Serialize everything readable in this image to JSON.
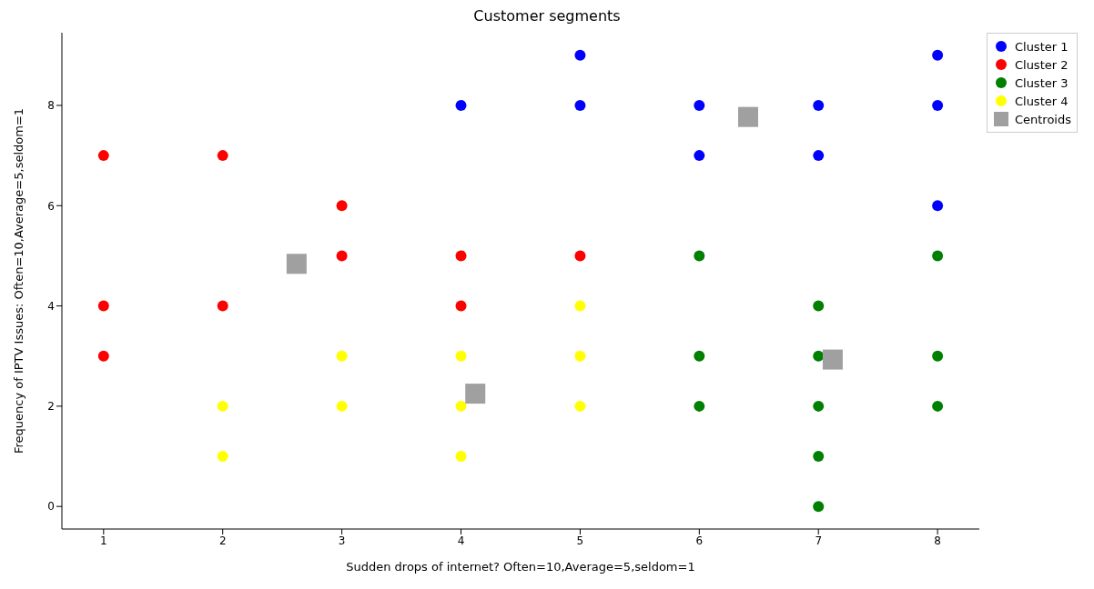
{
  "chart_data": {
    "type": "scatter",
    "title": "Customer segments",
    "xlabel": "Sudden drops of internet? Often=10,Average=5,seldom=1",
    "ylabel": "Frequency of IPTV Issues: Often=10,Average=5,seldom=1",
    "xlim": [
      0.65,
      8.35
    ],
    "xticks": [
      1,
      2,
      3,
      4,
      5,
      6,
      7,
      8
    ],
    "ylim": [
      -0.45,
      9.45
    ],
    "yticks": [
      0,
      2,
      4,
      6,
      8
    ],
    "grid": false,
    "legend": "top right",
    "marker": "circle",
    "series": [
      {
        "name": "Cluster 1",
        "color": "#0000ff",
        "x": [
          4,
          5,
          5,
          6,
          6,
          7,
          7,
          8,
          8,
          8
        ],
        "values": [
          8,
          9,
          8,
          8,
          7,
          8,
          7,
          9,
          8,
          6
        ]
      },
      {
        "name": "Cluster 2",
        "color": "#ff0000",
        "x": [
          1,
          1,
          1,
          2,
          2,
          3,
          3,
          4,
          4,
          5
        ],
        "values": [
          7,
          4,
          3,
          7,
          4,
          6,
          5,
          5,
          4,
          5
        ]
      },
      {
        "name": "Cluster 3",
        "color": "#008000",
        "x": [
          6,
          6,
          6,
          7,
          7,
          7,
          7,
          7,
          8,
          8,
          8
        ],
        "values": [
          5,
          3,
          2,
          4,
          3,
          2,
          1,
          0,
          5,
          3,
          2
        ]
      },
      {
        "name": "Cluster 4",
        "color": "#ffff00",
        "x": [
          2,
          2,
          3,
          3,
          4,
          4,
          4,
          5,
          5,
          5
        ],
        "values": [
          2,
          1,
          3,
          2,
          3,
          2,
          1,
          4,
          3,
          2
        ]
      },
      {
        "name": "Centroids",
        "color": "#a0a0a0",
        "marker": "square",
        "x": [
          2.62,
          4.12,
          6.41,
          7.12
        ],
        "values": [
          4.84,
          2.25,
          7.77,
          2.93
        ]
      }
    ]
  }
}
